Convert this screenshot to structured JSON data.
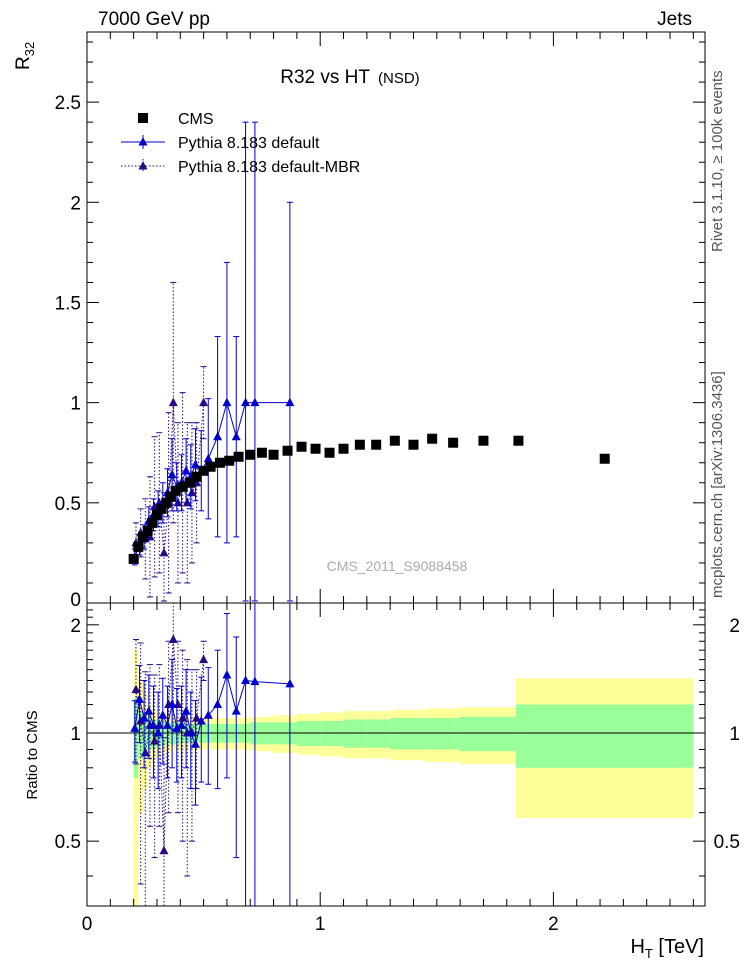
{
  "header": {
    "left": "7000 GeV pp",
    "right": "Jets",
    "title": "R32 vs HT",
    "title_suffix": "(NSD)",
    "watermark": "CMS_2011_S9088458"
  },
  "side": {
    "rivet": "Rivet 3.1.10, ≥ 100k events",
    "mcplots": "mcplots.cern.ch [arXiv:1306.3436]"
  },
  "legend": {
    "placement": "top-left",
    "entries": [
      "CMS",
      "Pythia 8.183 default",
      "Pythia 8.183 default-MBR"
    ]
  },
  "colors": {
    "data": "#000000",
    "default": "#0000cc",
    "mbr": "#2a0a80",
    "band_inner": "#99ff99",
    "band_outer": "#ffff99"
  },
  "chart_data": [
    {
      "type": "scatter",
      "panel": "main",
      "ylabel": "R32",
      "xlim": [
        0,
        2.65
      ],
      "ylim": [
        0,
        2.85
      ],
      "y_ticks": [
        "0",
        "0.5",
        "1",
        "1.5",
        "2",
        "2.5"
      ],
      "grid": false,
      "series": [
        {
          "name": "CMS",
          "x": [
            0.2,
            0.22,
            0.24,
            0.26,
            0.28,
            0.3,
            0.32,
            0.34,
            0.36,
            0.38,
            0.41,
            0.44,
            0.47,
            0.5,
            0.53,
            0.57,
            0.61,
            0.65,
            0.7,
            0.75,
            0.8,
            0.86,
            0.92,
            0.98,
            1.04,
            1.1,
            1.17,
            1.24,
            1.32,
            1.4,
            1.48,
            1.57,
            1.7,
            1.85,
            2.22
          ],
          "y": [
            0.22,
            0.28,
            0.33,
            0.36,
            0.4,
            0.44,
            0.47,
            0.5,
            0.53,
            0.56,
            0.58,
            0.6,
            0.63,
            0.66,
            0.68,
            0.7,
            0.71,
            0.73,
            0.74,
            0.75,
            0.74,
            0.76,
            0.78,
            0.77,
            0.75,
            0.77,
            0.79,
            0.79,
            0.81,
            0.79,
            0.82,
            0.8,
            0.81,
            0.81,
            0.72
          ]
        },
        {
          "name": "Pythia 8.183 default",
          "x": [
            0.205,
            0.225,
            0.245,
            0.265,
            0.285,
            0.305,
            0.325,
            0.345,
            0.365,
            0.385,
            0.405,
            0.425,
            0.445,
            0.465,
            0.49,
            0.52,
            0.56,
            0.6,
            0.64,
            0.68,
            0.72,
            0.87
          ],
          "y": [
            0.23,
            0.29,
            0.33,
            0.41,
            0.44,
            0.47,
            0.5,
            0.55,
            0.64,
            0.58,
            0.6,
            0.66,
            0.63,
            0.69,
            0.66,
            0.72,
            0.83,
            1.0,
            0.83,
            1.0,
            1.0,
            1.0
          ],
          "yerr": [
            0.04,
            0.05,
            0.06,
            0.07,
            0.08,
            0.09,
            0.1,
            0.12,
            0.18,
            0.12,
            0.14,
            0.16,
            0.16,
            0.18,
            0.2,
            0.3,
            0.5,
            0.7,
            0.5,
            1.4,
            1.4,
            1.0
          ]
        },
        {
          "name": "Pythia 8.183 default-MBR",
          "x": [
            0.21,
            0.23,
            0.25,
            0.27,
            0.29,
            0.31,
            0.33,
            0.35,
            0.37,
            0.39,
            0.41,
            0.43,
            0.45,
            0.47,
            0.5
          ],
          "y": [
            0.3,
            0.35,
            0.32,
            0.33,
            0.48,
            0.5,
            0.25,
            0.5,
            1.0,
            0.5,
            0.6,
            0.5,
            0.55,
            0.6,
            1.0
          ],
          "yerr": [
            0.1,
            0.12,
            0.2,
            0.3,
            0.35,
            0.35,
            0.3,
            0.45,
            0.6,
            0.4,
            0.45,
            0.4,
            0.35,
            0.3,
            0.18
          ]
        }
      ]
    },
    {
      "type": "scatter",
      "panel": "ratio",
      "ylabel": "Ratio to CMS",
      "xlabel": "HT [TeV]",
      "xlim": [
        0,
        2.65
      ],
      "ylim": [
        0.33,
        2.3
      ],
      "x_ticks": [
        "0",
        "1",
        "2"
      ],
      "y_ticks": [
        "0.5",
        "1",
        "2"
      ],
      "bands": {
        "edges": [
          0.2,
          0.22,
          0.24,
          0.26,
          0.28,
          0.3,
          0.32,
          0.34,
          0.36,
          0.4,
          0.45,
          0.5,
          0.6,
          0.7,
          0.8,
          0.9,
          1.0,
          1.1,
          1.2,
          1.3,
          1.45,
          1.6,
          1.84,
          2.6
        ],
        "inner": [
          0.25,
          0.15,
          0.12,
          0.1,
          0.09,
          0.08,
          0.08,
          0.07,
          0.07,
          0.06,
          0.06,
          0.06,
          0.06,
          0.07,
          0.07,
          0.08,
          0.08,
          0.09,
          0.09,
          0.1,
          0.1,
          0.11,
          0.2
        ],
        "outer": [
          0.7,
          0.4,
          0.3,
          0.2,
          0.15,
          0.13,
          0.12,
          0.11,
          0.11,
          0.1,
          0.1,
          0.1,
          0.1,
          0.11,
          0.12,
          0.13,
          0.14,
          0.15,
          0.15,
          0.16,
          0.17,
          0.18,
          0.42
        ]
      },
      "series": [
        {
          "name": "Pythia 8.183 default",
          "x": [
            0.205,
            0.225,
            0.245,
            0.265,
            0.285,
            0.305,
            0.325,
            0.345,
            0.365,
            0.385,
            0.405,
            0.425,
            0.445,
            0.465,
            0.49,
            0.52,
            0.56,
            0.6,
            0.64,
            0.68,
            0.72,
            0.87
          ],
          "y": [
            1.03,
            1.24,
            1.1,
            1.15,
            1.05,
            1.0,
            1.12,
            1.05,
            1.2,
            1.03,
            1.05,
            1.15,
            1.0,
            0.93,
            1.08,
            1.12,
            1.2,
            1.45,
            1.15,
            1.4,
            1.39,
            1.37
          ],
          "yerr": [
            0.2,
            0.3,
            0.3,
            0.3,
            0.3,
            0.3,
            0.3,
            0.3,
            0.4,
            0.3,
            0.3,
            0.35,
            0.3,
            0.3,
            0.35,
            0.4,
            0.5,
            0.7,
            0.7,
            1.5,
            1.5,
            1.3
          ]
        },
        {
          "name": "Pythia 8.183 default-MBR",
          "x": [
            0.21,
            0.23,
            0.25,
            0.27,
            0.29,
            0.31,
            0.33,
            0.35,
            0.37,
            0.39,
            0.41,
            0.43,
            0.45,
            0.47,
            0.5
          ],
          "y": [
            1.32,
            1.08,
            0.88,
            1.05,
            0.95,
            1.05,
            0.47,
            1.2,
            1.82,
            1.2,
            1.1,
            1.0,
            1.0,
            1.1,
            1.6
          ],
          "yerr": [
            0.5,
            0.7,
            0.6,
            0.5,
            0.5,
            0.5,
            0.5,
            0.6,
            0.8,
            0.6,
            0.6,
            0.6,
            0.5,
            0.4,
            0.2
          ]
        }
      ]
    }
  ]
}
